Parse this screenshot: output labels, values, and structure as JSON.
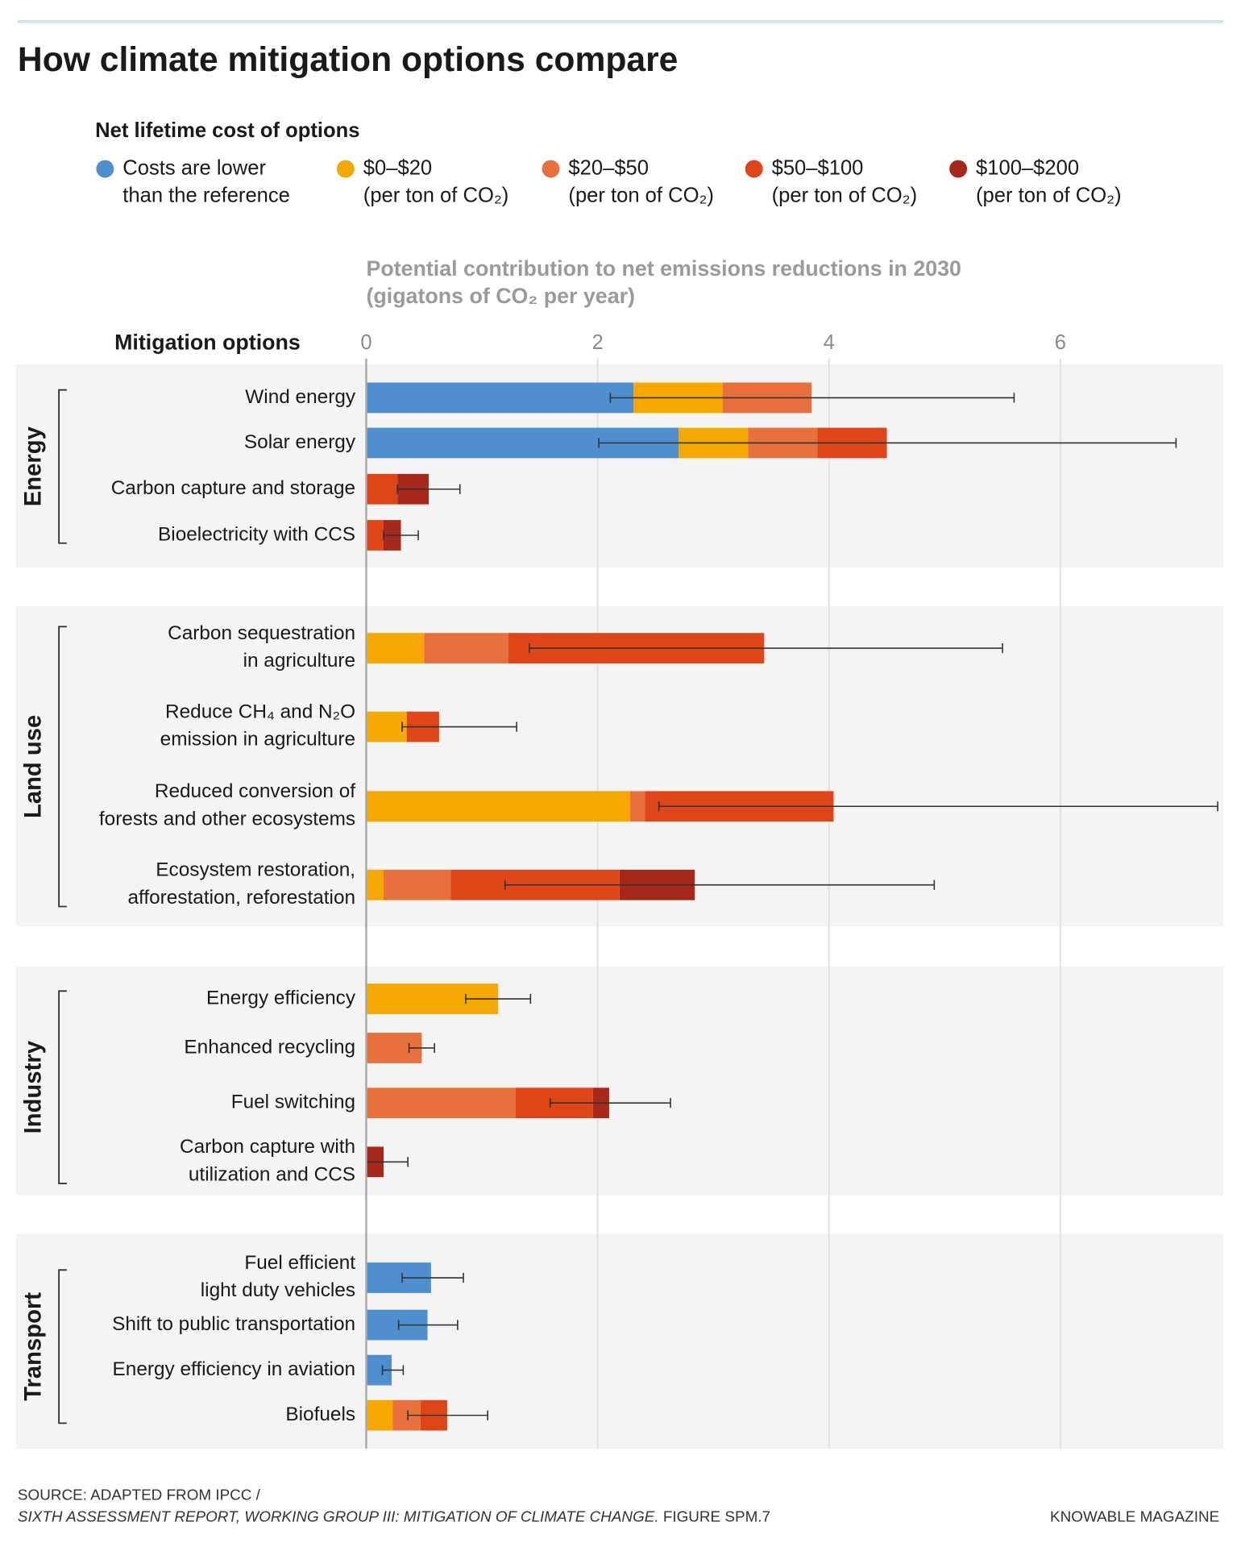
{
  "chart_data": {
    "type": "bar",
    "orientation": "horizontal",
    "stacked": true,
    "title": "How climate mitigation options compare",
    "legend_title": "Net lifetime cost of options",
    "xlabel": "Potential contribution to net emissions reductions in 2030\n(gigatons of CO₂ per year)",
    "ylabel": "Mitigation options",
    "xlim": [
      0,
      7.4
    ],
    "xticks": [
      0,
      2,
      4,
      6
    ],
    "grid": true,
    "series": [
      {
        "name": "Costs are lower\nthan the reference",
        "color": "#4f8fd0"
      },
      {
        "name": "$0–$20\n(per ton of CO₂)",
        "color": "#f5a800"
      },
      {
        "name": "$20–$50\n(per ton of CO₂)",
        "color": "#e8703d"
      },
      {
        "name": "$50–$100\n(per ton of CO₂)",
        "color": "#df4617"
      },
      {
        "name": "$100–$200\n(per ton of CO₂)",
        "color": "#a5281b"
      }
    ],
    "groups": [
      {
        "name": "Energy",
        "categories": [
          "Wind energy",
          "Solar energy",
          "Carbon capture and storage",
          "Bioelectricity with CCS"
        ],
        "values": [
          [
            2.31,
            0.77,
            0.77,
            null,
            null
          ],
          [
            2.7,
            0.6,
            0.6,
            0.6,
            null
          ],
          [
            null,
            null,
            null,
            0.27,
            0.27
          ],
          [
            null,
            null,
            null,
            0.15,
            0.15
          ]
        ],
        "ranges": [
          [
            2.11,
            5.6
          ],
          [
            2.01,
            7.0
          ],
          [
            0.27,
            0.81
          ],
          [
            0.15,
            0.45
          ]
        ]
      },
      {
        "name": "Land use",
        "categories": [
          "Carbon sequestration\nin agriculture",
          "Reduce CH₄ and N₂O\nemission in agriculture",
          "Reduced conversion of\nforests and other ecosystems",
          "Ecosystem restoration,\nafforestation, reforestation"
        ],
        "values": [
          [
            null,
            0.5,
            0.73,
            2.21,
            null
          ],
          [
            null,
            0.35,
            null,
            0.28,
            null
          ],
          [
            null,
            2.28,
            0.13,
            1.63,
            null
          ],
          [
            null,
            0.15,
            0.58,
            1.46,
            0.65
          ]
        ],
        "ranges": [
          [
            1.41,
            5.5
          ],
          [
            0.31,
            1.3
          ],
          [
            2.53,
            7.36
          ],
          [
            1.2,
            4.91
          ]
        ]
      },
      {
        "name": "Industry",
        "categories": [
          "Energy efficiency",
          "Enhanced recycling",
          "Fuel switching",
          "Carbon capture with\nutilization and CCS"
        ],
        "values": [
          [
            null,
            1.14,
            null,
            null,
            null
          ],
          [
            null,
            null,
            0.48,
            null,
            null
          ],
          [
            null,
            null,
            1.29,
            0.67,
            0.14
          ],
          [
            null,
            null,
            null,
            null,
            0.15
          ]
        ],
        "ranges": [
          [
            0.86,
            1.42
          ],
          [
            0.37,
            0.59
          ],
          [
            1.59,
            2.63
          ],
          [
            0,
            0.36
          ]
        ]
      },
      {
        "name": "Transport",
        "categories": [
          "Fuel efficient\nlight duty vehicles",
          "Shift to public transportation",
          "Energy efficiency in aviation",
          "Biofuels"
        ],
        "values": [
          [
            0.56,
            null,
            null,
            null,
            null
          ],
          [
            0.53,
            null,
            null,
            null,
            null
          ],
          [
            0.22,
            null,
            null,
            null,
            null
          ],
          [
            null,
            0.23,
            0.24,
            0.23,
            null
          ]
        ],
        "ranges": [
          [
            0.31,
            0.84
          ],
          [
            0.28,
            0.79
          ],
          [
            0.14,
            0.32
          ],
          [
            0.36,
            1.05
          ]
        ]
      }
    ],
    "source_line1": "SOURCE: ADAPTED FROM IPCC /",
    "source_title": "SIXTH ASSESSMENT REPORT, WORKING GROUP III: MITIGATION OF CLIMATE CHANGE.",
    "source_figure": " FIGURE SPM.7",
    "credit": "KNOWABLE MAGAZINE"
  }
}
